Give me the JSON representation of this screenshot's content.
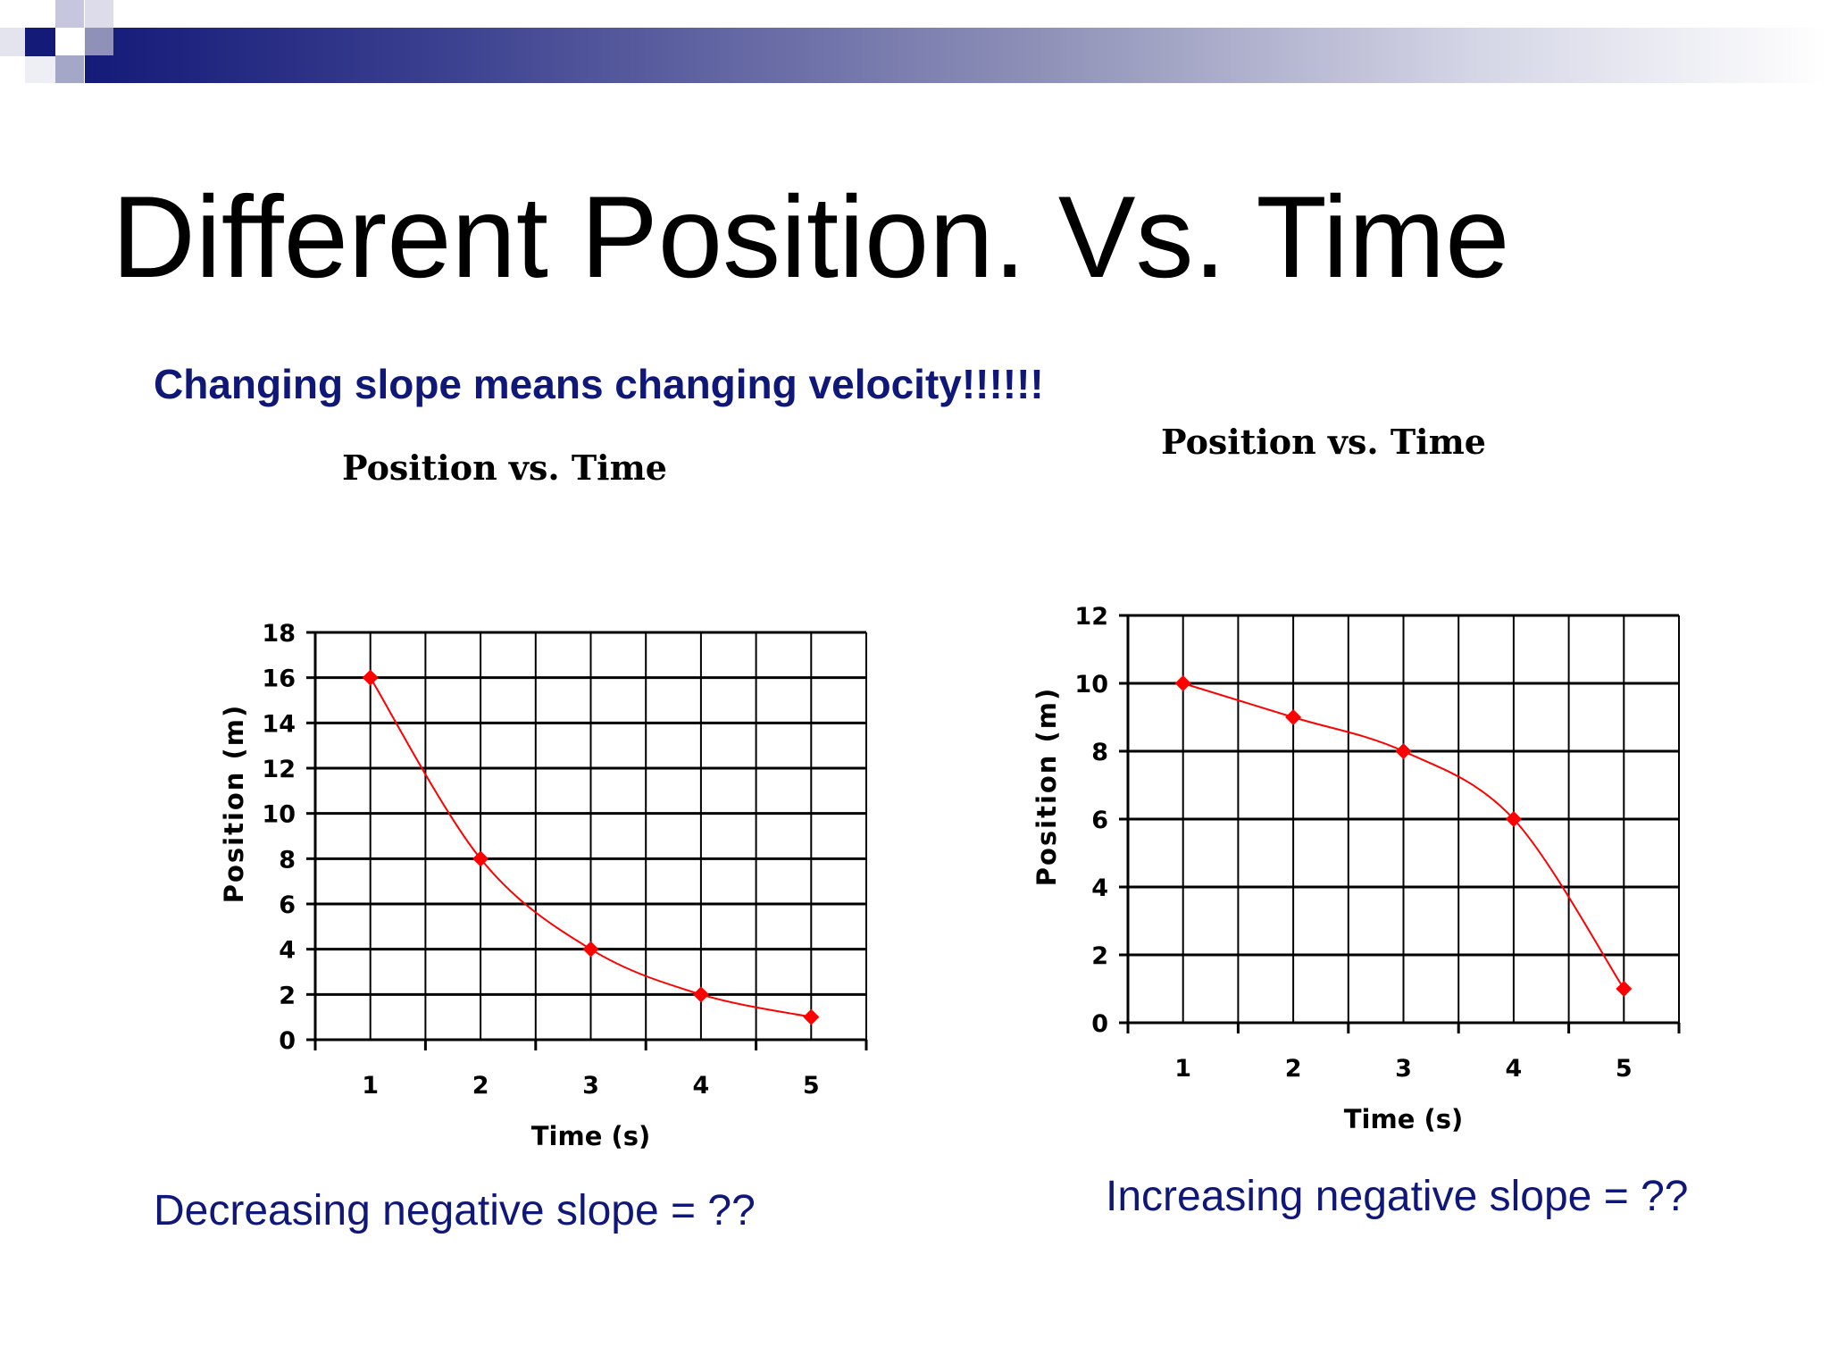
{
  "slide": {
    "title": "Different Position. Vs. Time",
    "subtitle": "Changing slope means changing velocity!!!!!!",
    "caption_left": "Decreasing negative slope = ??",
    "caption_right": "Increasing negative slope = ??"
  },
  "colors": {
    "header_dark": "#141a78",
    "header_mid": "#8f91b8",
    "header_light": "#c6c7de",
    "text_blue": "#0f1778",
    "series_red": "#ff0000",
    "grid": "#000000"
  },
  "chart_data": [
    {
      "type": "line",
      "title": "Position vs. Time",
      "xlabel": "Time (s)",
      "ylabel": "Position (m)",
      "categories": [
        1,
        2,
        3,
        4,
        5
      ],
      "series": [
        {
          "values": [
            16,
            8,
            4,
            2,
            1
          ],
          "color": "#ff0000",
          "marker": "diamond"
        }
      ],
      "ylim": [
        0,
        18
      ],
      "yticks": [
        0,
        2,
        4,
        6,
        8,
        10,
        12,
        14,
        16,
        18
      ],
      "grid": true,
      "legend": "none"
    },
    {
      "type": "line",
      "title": "Position  vs. Time",
      "xlabel": "Time (s)",
      "ylabel": "Position (m)",
      "categories": [
        1,
        2,
        3,
        4,
        5
      ],
      "series": [
        {
          "values": [
            10,
            9,
            8,
            6,
            1
          ],
          "color": "#ff0000",
          "marker": "diamond"
        }
      ],
      "ylim": [
        0,
        12
      ],
      "yticks": [
        0,
        2,
        4,
        6,
        8,
        10,
        12
      ],
      "grid": true,
      "legend": "none"
    }
  ]
}
